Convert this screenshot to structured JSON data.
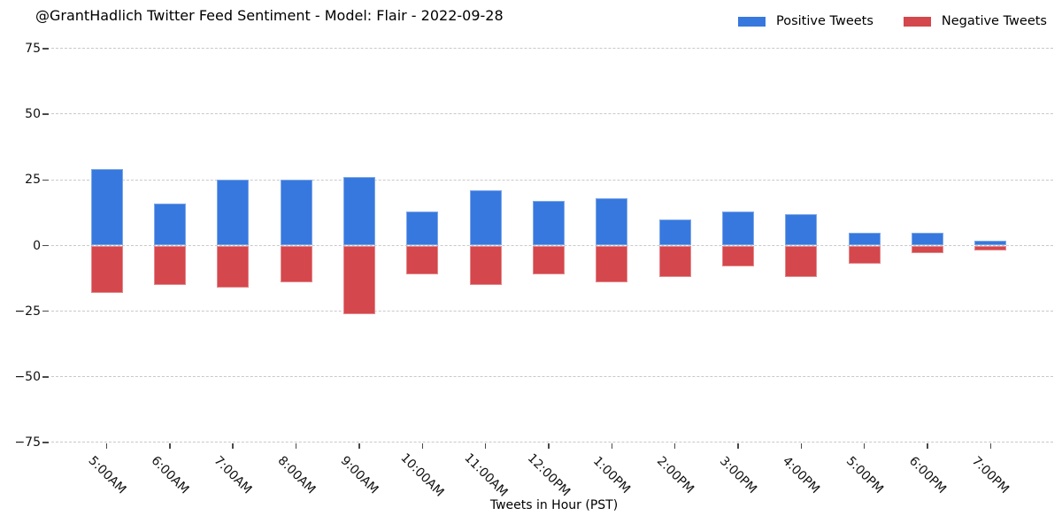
{
  "chart_data": {
    "type": "bar",
    "title": "@GrantHadlich Twitter Feed Sentiment - Model: Flair - 2022-09-28",
    "xlabel": "Tweets in Hour (PST)",
    "ylabel": "",
    "categories": [
      "5:00AM",
      "6:00AM",
      "7:00AM",
      "8:00AM",
      "9:00AM",
      "10:00AM",
      "11:00AM",
      "12:00PM",
      "1:00PM",
      "2:00PM",
      "3:00PM",
      "4:00PM",
      "5:00PM",
      "6:00PM",
      "7:00PM"
    ],
    "series": [
      {
        "name": "Positive Tweets",
        "color": "#3778DE",
        "values": [
          29,
          16,
          25,
          25,
          26,
          13,
          21,
          17,
          18,
          10,
          13,
          12,
          5,
          5,
          2
        ]
      },
      {
        "name": "Negative Tweets",
        "color": "#D4474C",
        "values": [
          -18,
          -15,
          -16,
          -14,
          -26,
          -11,
          -15,
          -11,
          -14,
          -12,
          -8,
          -12,
          -7,
          -3,
          -2
        ]
      }
    ],
    "yticks": [
      75,
      50,
      25,
      0,
      -25,
      -50,
      -75
    ],
    "ylim": [
      -75,
      75
    ],
    "grid": true,
    "grid_style": "dashed",
    "grid_color": "#c9c9c9",
    "legend_position": "upper right",
    "tick_label_rotation_deg": 45,
    "stacked_at_zero": true
  }
}
